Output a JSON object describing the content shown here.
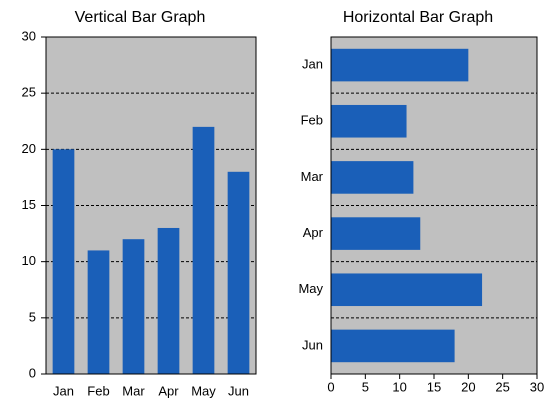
{
  "chart_data": [
    {
      "type": "bar",
      "title": "Vertical Bar Graph",
      "categories": [
        "Jan",
        "Feb",
        "Mar",
        "Apr",
        "May",
        "Jun"
      ],
      "values": [
        20,
        11,
        12,
        13,
        22,
        18
      ],
      "color": "#1a5fb8",
      "ylim": [
        0,
        30
      ],
      "yticks": [
        0,
        5,
        10,
        15,
        20,
        25,
        30
      ],
      "grid": true
    },
    {
      "type": "barh",
      "title": "Horizontal Bar Graph",
      "categories": [
        "Jan",
        "Feb",
        "Mar",
        "Apr",
        "May",
        "Jun"
      ],
      "values": [
        20,
        11,
        12,
        13,
        22,
        18
      ],
      "color": "#1a5fb8",
      "xlim": [
        0,
        30
      ],
      "xticks": [
        0,
        5,
        10,
        15,
        20,
        25,
        30
      ],
      "grid": true
    }
  ]
}
